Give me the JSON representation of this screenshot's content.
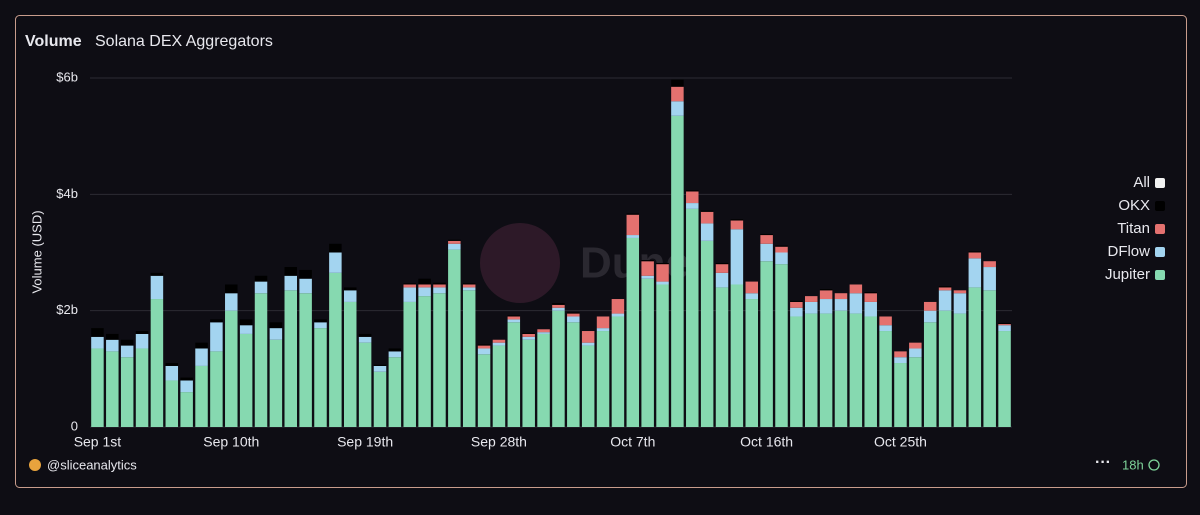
{
  "chart_data": {
    "type": "stacked_bar",
    "title": "Volume",
    "subtitle": "Solana DEX Aggregators",
    "ylabel": "Volume (USD)",
    "watermark": "Dune",
    "categories": [
      "Sep 1st",
      null,
      null,
      null,
      null,
      null,
      null,
      null,
      null,
      "Sep 10th",
      null,
      null,
      null,
      null,
      null,
      null,
      null,
      null,
      "Sep 19th",
      null,
      null,
      null,
      null,
      null,
      null,
      null,
      null,
      "Sep 28th",
      null,
      null,
      null,
      null,
      null,
      null,
      null,
      null,
      "Oct 7th",
      null,
      null,
      null,
      null,
      null,
      null,
      null,
      null,
      "Oct 16th",
      null,
      null,
      null,
      null,
      null,
      null,
      null,
      null,
      "Oct 25th",
      null,
      null,
      null,
      null,
      null,
      null,
      null
    ],
    "series": [
      {
        "name": "Jupiter",
        "color": "#86d9b0",
        "values": [
          1.35,
          1.3,
          1.2,
          1.35,
          2.2,
          0.8,
          0.6,
          1.05,
          1.3,
          2.0,
          1.6,
          2.3,
          1.5,
          2.35,
          2.3,
          1.7,
          2.65,
          2.15,
          1.45,
          0.95,
          1.2,
          2.15,
          2.25,
          2.3,
          3.05,
          2.35,
          1.25,
          1.4,
          1.8,
          1.5,
          1.6,
          2.0,
          1.8,
          1.4,
          1.65,
          1.9,
          3.25,
          2.55,
          2.45,
          5.35,
          3.75,
          3.2,
          2.4,
          2.45,
          2.2,
          2.85,
          2.8,
          1.9,
          1.95,
          1.95,
          2.0,
          1.95,
          1.9,
          1.65,
          1.1,
          1.2,
          1.8,
          2.0,
          1.95,
          2.4,
          2.35,
          1.65
        ]
      },
      {
        "name": "DFlow",
        "color": "#a3d4f0",
        "values": [
          0.2,
          0.2,
          0.2,
          0.25,
          0.4,
          0.25,
          0.2,
          0.3,
          0.5,
          0.3,
          0.15,
          0.2,
          0.2,
          0.25,
          0.25,
          0.1,
          0.35,
          0.2,
          0.1,
          0.1,
          0.1,
          0.25,
          0.15,
          0.1,
          0.1,
          0.05,
          0.1,
          0.05,
          0.05,
          0.05,
          0.03,
          0.05,
          0.1,
          0.05,
          0.05,
          0.05,
          0.05,
          0.05,
          0.05,
          0.25,
          0.1,
          0.3,
          0.25,
          0.95,
          0.1,
          0.3,
          0.2,
          0.15,
          0.2,
          0.25,
          0.2,
          0.35,
          0.25,
          0.1,
          0.1,
          0.15,
          0.2,
          0.35,
          0.35,
          0.5,
          0.4,
          0.1
        ]
      },
      {
        "name": "Titan",
        "color": "#e4716f",
        "values": [
          0,
          0,
          0,
          0,
          0,
          0,
          0,
          0,
          0,
          0,
          0,
          0,
          0,
          0,
          0,
          0,
          0,
          0,
          0,
          0,
          0,
          0.05,
          0.05,
          0.05,
          0.05,
          0.05,
          0.05,
          0.05,
          0.05,
          0.05,
          0.05,
          0.05,
          0.05,
          0.2,
          0.2,
          0.25,
          0.35,
          0.25,
          0.3,
          0.25,
          0.2,
          0.2,
          0.15,
          0.15,
          0.2,
          0.15,
          0.1,
          0.1,
          0.1,
          0.15,
          0.1,
          0.15,
          0.15,
          0.15,
          0.1,
          0.1,
          0.15,
          0.05,
          0.05,
          0.1,
          0.1,
          0.02
        ]
      },
      {
        "name": "OKX",
        "color": "#000000",
        "values": [
          0.15,
          0.1,
          0.1,
          0.05,
          0.05,
          0.05,
          0.05,
          0.1,
          0.05,
          0.15,
          0.1,
          0.1,
          0.1,
          0.15,
          0.15,
          0.05,
          0.15,
          0.05,
          0.05,
          0.02,
          0.05,
          0.02,
          0.1,
          0.03,
          0.02,
          0.02,
          0.02,
          0,
          0.02,
          0.02,
          0,
          0.03,
          0.02,
          0,
          0,
          0,
          0.02,
          0.02,
          0.02,
          0.12,
          0.02,
          0.02,
          0.02,
          0.02,
          0,
          0.02,
          0.02,
          0.02,
          0,
          0.02,
          0,
          0,
          0.02,
          0,
          0,
          0,
          0,
          0.02,
          0,
          0.02,
          0,
          0.02
        ]
      },
      {
        "name": "All",
        "color": "#f2f2f2",
        "values": [
          null,
          null,
          null,
          null,
          null,
          null,
          null,
          null,
          null,
          null,
          null,
          null,
          null,
          null,
          null,
          null,
          null,
          null,
          null,
          null,
          null,
          null,
          null,
          null,
          null,
          null,
          null,
          null,
          null,
          null,
          null,
          null,
          null,
          null,
          null,
          null,
          null,
          null,
          null,
          null,
          null,
          null,
          null,
          null,
          null,
          null,
          null,
          null,
          null,
          null,
          null,
          null,
          null,
          null,
          null,
          null,
          null,
          null,
          null,
          null,
          null,
          null
        ]
      }
    ],
    "ylim": [
      0,
      6
    ],
    "yticks": [
      0,
      {
        "value": 2,
        "label": "$2b"
      },
      {
        "value": 4,
        "label": "$4b"
      },
      {
        "value": 6,
        "label": "$6b"
      }
    ],
    "grid": true,
    "legend": "right"
  },
  "footer": {
    "author": "@sliceanalytics",
    "updated": "18h"
  }
}
